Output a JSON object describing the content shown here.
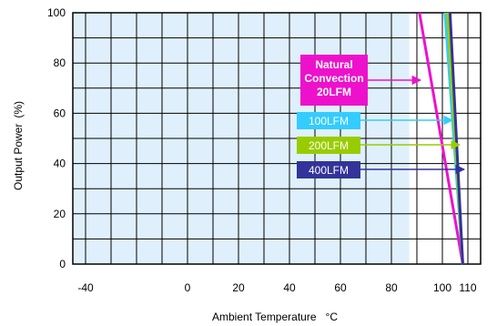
{
  "chart_data": {
    "type": "line",
    "title": "",
    "xlabel": "Ambient Temperature",
    "xlabel_unit": "°C",
    "ylabel": "Output Power",
    "ylabel_unit": "(%)",
    "xlim": [
      -45,
      115
    ],
    "ylim": [
      0,
      100
    ],
    "x_ticks": [
      -40,
      0,
      20,
      40,
      60,
      80,
      100,
      110
    ],
    "y_ticks": [
      0,
      20,
      40,
      60,
      80,
      100
    ],
    "grid": true,
    "shaded_region_x": [
      -45,
      87
    ],
    "series": [
      {
        "name": "Natural Convection 20LFM",
        "name_lines": [
          "Natural",
          "Convection",
          "20LFM"
        ],
        "color": "#ee11cc",
        "points": [
          [
            91,
            100
          ],
          [
            108,
            0
          ]
        ]
      },
      {
        "name": "100LFM",
        "color": "#33ccff",
        "points": [
          [
            101,
            100
          ],
          [
            108,
            0
          ]
        ]
      },
      {
        "name": "200LFM",
        "color": "#99cc00",
        "points": [
          [
            102,
            100
          ],
          [
            108,
            0
          ]
        ]
      },
      {
        "name": "400LFM",
        "color": "#333399",
        "points": [
          [
            103,
            100
          ],
          [
            108,
            0
          ]
        ]
      }
    ],
    "legend_placement": "right, with arrows pointing to curves"
  }
}
